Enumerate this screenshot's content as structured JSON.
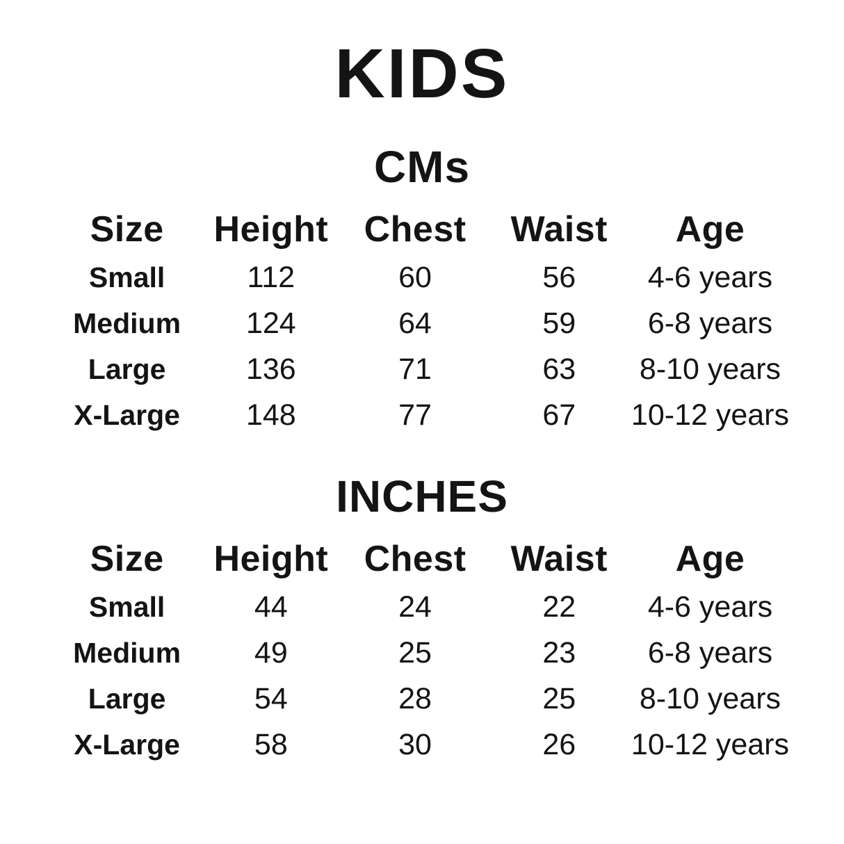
{
  "page": {
    "title": "KIDS",
    "background_color": "#ffffff",
    "text_color": "#151314"
  },
  "columns": [
    "Size",
    "Height",
    "Chest",
    "Waist",
    "Age"
  ],
  "sections": [
    {
      "heading": "CMs",
      "rows": [
        {
          "size": "Small",
          "height": "112",
          "chest": "60",
          "waist": "56",
          "age": "4-6 years"
        },
        {
          "size": "Medium",
          "height": "124",
          "chest": "64",
          "waist": "59",
          "age": "6-8 years"
        },
        {
          "size": "Large",
          "height": "136",
          "chest": "71",
          "waist": "63",
          "age": "8-10 years"
        },
        {
          "size": "X-Large",
          "height": "148",
          "chest": "77",
          "waist": "67",
          "age": "10-12 years"
        }
      ]
    },
    {
      "heading": "INCHES",
      "rows": [
        {
          "size": "Small",
          "height": "44",
          "chest": "24",
          "waist": "22",
          "age": "4-6 years"
        },
        {
          "size": "Medium",
          "height": "49",
          "chest": "25",
          "waist": "23",
          "age": "6-8 years"
        },
        {
          "size": "Large",
          "height": "54",
          "chest": "28",
          "waist": "25",
          "age": "8-10 years"
        },
        {
          "size": "X-Large",
          "height": "58",
          "chest": "30",
          "waist": "26",
          "age": "10-12 years"
        }
      ]
    }
  ],
  "chart_data": [
    {
      "type": "table",
      "title": "KIDS - CMs",
      "columns": [
        "Size",
        "Height",
        "Chest",
        "Waist",
        "Age"
      ],
      "rows": [
        [
          "Small",
          112,
          60,
          56,
          "4-6 years"
        ],
        [
          "Medium",
          124,
          64,
          59,
          "6-8 years"
        ],
        [
          "Large",
          136,
          71,
          63,
          "8-10 years"
        ],
        [
          "X-Large",
          148,
          77,
          67,
          "10-12 years"
        ]
      ]
    },
    {
      "type": "table",
      "title": "KIDS - INCHES",
      "columns": [
        "Size",
        "Height",
        "Chest",
        "Waist",
        "Age"
      ],
      "rows": [
        [
          "Small",
          44,
          24,
          22,
          "4-6 years"
        ],
        [
          "Medium",
          49,
          25,
          23,
          "6-8 years"
        ],
        [
          "Large",
          54,
          28,
          25,
          "8-10 years"
        ],
        [
          "X-Large",
          58,
          30,
          26,
          "10-12 years"
        ]
      ]
    }
  ]
}
